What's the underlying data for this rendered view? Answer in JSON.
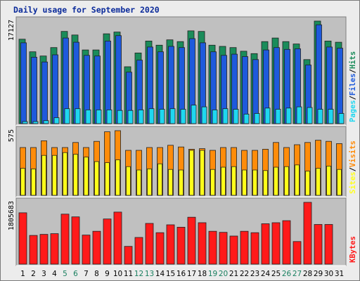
{
  "chart_data": {
    "type": "bar",
    "title": "Daily usage for September 2020",
    "categories": [
      "1",
      "2",
      "3",
      "4",
      "5",
      "6",
      "7",
      "8",
      "9",
      "10",
      "11",
      "12",
      "13",
      "14",
      "15",
      "16",
      "17",
      "18",
      "19",
      "20",
      "21",
      "22",
      "23",
      "24",
      "25",
      "26",
      "27",
      "28",
      "29",
      "30",
      "31"
    ],
    "weekend_days": [
      5,
      6,
      12,
      13,
      19,
      20,
      26,
      27
    ],
    "panels": [
      {
        "id": "hits-files-pages",
        "y_max_label": "17127",
        "ylim": [
          0,
          17127
        ],
        "legend": [
          "Pages",
          "/",
          "Files",
          "/",
          "Hits"
        ],
        "series": [
          {
            "name": "Hits",
            "color": "#1a8c5a",
            "values": [
              14100,
              12000,
              11300,
              12700,
              15400,
              14800,
              12300,
              12300,
              15000,
              15300,
              9500,
              11800,
              13800,
              13100,
              14000,
              13700,
              15500,
              15400,
              13100,
              12900,
              12700,
              12100,
              11700,
              13700,
              14300,
              13700,
              13300,
              10700,
              17127,
              13800,
              13600
            ]
          },
          {
            "name": "Files",
            "color": "#1e5adc",
            "values": [
              13500,
              11100,
              10300,
              11500,
              14300,
              13600,
              11400,
              11300,
              13800,
              14700,
              8600,
              10600,
              12800,
              12000,
              12900,
              12700,
              14200,
              13500,
              12000,
              11400,
              11600,
              11200,
              10700,
              12300,
              12700,
              12400,
              12500,
              9800,
              16500,
              12800,
              12600
            ]
          },
          {
            "name": "Pages",
            "color": "#1fd7f0",
            "values": [
              350,
              350,
              500,
              1000,
              2500,
              2500,
              2300,
              2300,
              2300,
              2200,
              2200,
              2300,
              2500,
              2400,
              2500,
              2400,
              3100,
              2800,
              2300,
              2500,
              2400,
              1600,
              1700,
              2600,
              2400,
              2600,
              2800,
              2700,
              2400,
              2400,
              1700
            ]
          }
        ]
      },
      {
        "id": "visits-sites",
        "y_max_label": "575",
        "ylim": [
          0,
          575
        ],
        "legend": [
          "Sites",
          "/",
          "Visits"
        ],
        "series": [
          {
            "name": "Visits",
            "color": "#ff8c0a",
            "values": [
              425,
              425,
              485,
              425,
              425,
              470,
              425,
              480,
              565,
              575,
              400,
              400,
              425,
              425,
              445,
              430,
              410,
              415,
              400,
              425,
              425,
              400,
              400,
              410,
              470,
              425,
              450,
              470,
              490,
              480,
              460
            ]
          },
          {
            "name": "Sites",
            "color": "#ffff1a",
            "values": [
              240,
              235,
              355,
              355,
              380,
              365,
              340,
              300,
              290,
              315,
              255,
              225,
              235,
              280,
              230,
              225,
              400,
              400,
              230,
              250,
              255,
              225,
              225,
              220,
              250,
              255,
              270,
              215,
              240,
              260,
              230
            ]
          }
        ]
      },
      {
        "id": "kbytes",
        "y_max_label": "1805683",
        "ylim": [
          0,
          1805683
        ],
        "legend": [
          "KBytes"
        ],
        "series": [
          {
            "name": "KBytes",
            "color": "#ff1a1a",
            "values": [
              1500000,
              840000,
              870000,
              890000,
              1460000,
              1380000,
              850000,
              960000,
              1320000,
              1520000,
              520000,
              780000,
              1190000,
              920000,
              1150000,
              1080000,
              1370000,
              1210000,
              960000,
              930000,
              820000,
              960000,
              920000,
              1180000,
              1210000,
              1270000,
              660000,
              1805683,
              1160000,
              1160000,
              0
            ]
          }
        ]
      }
    ]
  }
}
